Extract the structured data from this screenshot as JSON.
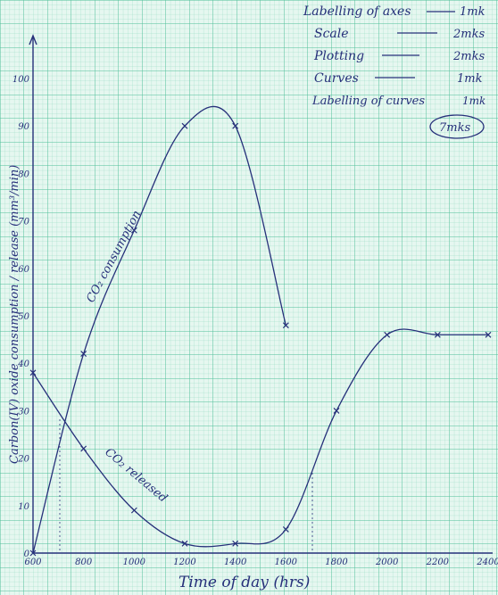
{
  "chart_data": {
    "type": "line",
    "xlabel": "Time of day (hrs)",
    "ylabel": "Carbon(IV) oxide consumption / release (mm³/min)",
    "x_ticks": [
      "600",
      "800",
      "1000",
      "1200",
      "1400",
      "1600",
      "1800",
      "2000",
      "2200",
      "2400"
    ],
    "y_ticks": [
      "0",
      "10",
      "20",
      "30",
      "40",
      "50",
      "60",
      "70",
      "80",
      "90",
      "100"
    ],
    "xlim": [
      600,
      2400
    ],
    "ylim": [
      0,
      100
    ],
    "grid": true,
    "series": [
      {
        "name": "CO2 consumption",
        "color": "#26307a",
        "x": [
          600,
          800,
          1000,
          1200,
          1400,
          1600
        ],
        "y": [
          0,
          42,
          68,
          90,
          90,
          48
        ]
      },
      {
        "name": "CO2 released",
        "color": "#26307a",
        "x": [
          600,
          800,
          1000,
          1200,
          1400,
          1600,
          1800,
          2000,
          2200,
          2400
        ],
        "y": [
          38,
          22,
          9,
          2,
          2,
          5,
          30,
          46,
          46,
          46
        ]
      }
    ],
    "curve_labels": [
      "CO₂ consumption",
      "CO₂ released"
    ]
  },
  "marking_scheme": {
    "rows": [
      {
        "item": "Labelling of axes",
        "mark": "1mk"
      },
      {
        "item": "Scale",
        "mark": "2mks"
      },
      {
        "item": "Plotting",
        "mark": "2mks"
      },
      {
        "item": "Curves",
        "mark": "1mk"
      },
      {
        "item": "Labelling of curves",
        "mark": "1mk"
      }
    ],
    "total": "7mks"
  }
}
